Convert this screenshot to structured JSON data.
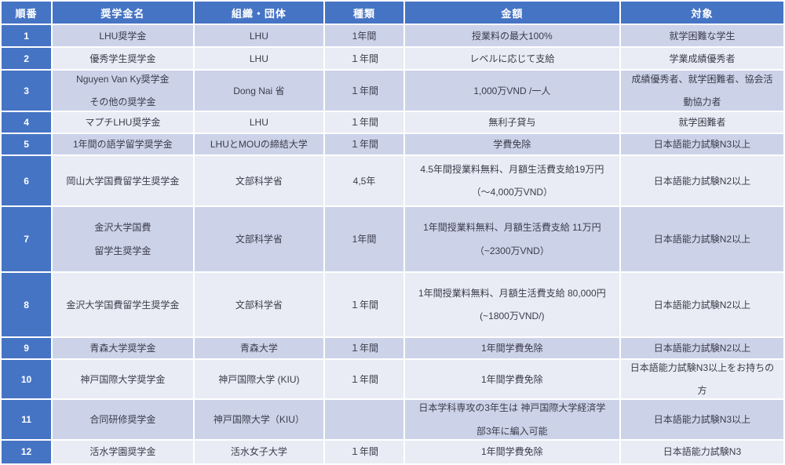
{
  "table": {
    "columns": [
      {
        "id": "num",
        "label": "順番"
      },
      {
        "id": "name",
        "label": "奨学金名"
      },
      {
        "id": "org",
        "label": "組織・団体"
      },
      {
        "id": "type",
        "label": "種類"
      },
      {
        "id": "amount",
        "label": "金額"
      },
      {
        "id": "target",
        "label": "対象"
      }
    ],
    "rows": [
      {
        "num": "1",
        "name": "LHU奨学金",
        "org": "LHU",
        "type": "1年間",
        "amount": "授業料の最大100%",
        "target": "就学困難な学生"
      },
      {
        "num": "2",
        "name": "優秀学生奨学金",
        "org": "LHU",
        "type": "１年間",
        "amount": "レベルに応じて支給",
        "target": "学業成績優秀者"
      },
      {
        "num": "3",
        "name": [
          "Nguyen Van Ky奨学金",
          "その他の奨学金"
        ],
        "org": "Dong Nai 省",
        "type": "１年間",
        "amount": "1,000万VND /一人",
        "target": [
          "成績優秀者、就学困難者、協会活",
          "動協力者"
        ]
      },
      {
        "num": "4",
        "name": "マプチLHU奨学金",
        "org": "LHU",
        "type": "１年間",
        "amount": "無利子貸与",
        "target": "就学困難者"
      },
      {
        "num": "5",
        "name": "1年間の語学留学奨学金",
        "org": "LHUとMOUの締結大学",
        "type": "１年間",
        "amount": "学費免除",
        "target": "日本語能力試験N3以上"
      },
      {
        "num": "6",
        "name": "岡山大学国費留学生奨学金",
        "org": "文部科学省",
        "type": "4,5年",
        "amount": [
          "4.5年間授業料無料、月額生活費支給19万円",
          "（～4,000万VND）"
        ],
        "target": "日本語能力試験N2以上"
      },
      {
        "num": "7",
        "name": [
          "金沢大学国費",
          "留学生奨学金"
        ],
        "org": "文部科学省",
        "type": "1年間",
        "amount": [
          "1年間授業料無料、月額生活費支給 11万円",
          "（~2300万VND）"
        ],
        "target": "日本語能力試験N2以上"
      },
      {
        "num": "8",
        "name": "金沢大学国費留学生奨学金",
        "org": "文部科学省",
        "type": "１年間",
        "amount": [
          "1年間授業料無料、月額生活費支給 80,000円",
          "(~1800万VND/)"
        ],
        "target": "日本語能力試験N2以上"
      },
      {
        "num": "9",
        "name": "青森大学奨学金",
        "org": "青森大学",
        "type": "１年間",
        "amount": "1年間学費免除",
        "target": "日本語能力試験N2以上"
      },
      {
        "num": "10",
        "name": "神戸国際大学奨学金",
        "org": "神戸国際大学 (KIU)",
        "type": "１年間",
        "amount": "1年間学費免除",
        "target": [
          "日本語能力試験N3以上をお持ちの",
          "方"
        ]
      },
      {
        "num": "11",
        "name": "合同研修奨学金",
        "org": "神戸国際大学（KIU）",
        "type": "",
        "amount": [
          "日本学科専攻の3年生は 神戸国際大学経済学",
          "部3年に編入可能"
        ],
        "target": "日本語能力試験N3以上"
      },
      {
        "num": "12",
        "name": "活水学園奨学金",
        "org": "活水女子大学",
        "type": "１年間",
        "amount": "1年間学費免除",
        "target": "日本語能力試験N3"
      }
    ]
  },
  "colors": {
    "header_bg": "#4674c4",
    "band_odd": "#ccd3e9",
    "band_even": "#e9ebf5",
    "text": "#3b3c4a",
    "header_text": "#ffffff"
  }
}
